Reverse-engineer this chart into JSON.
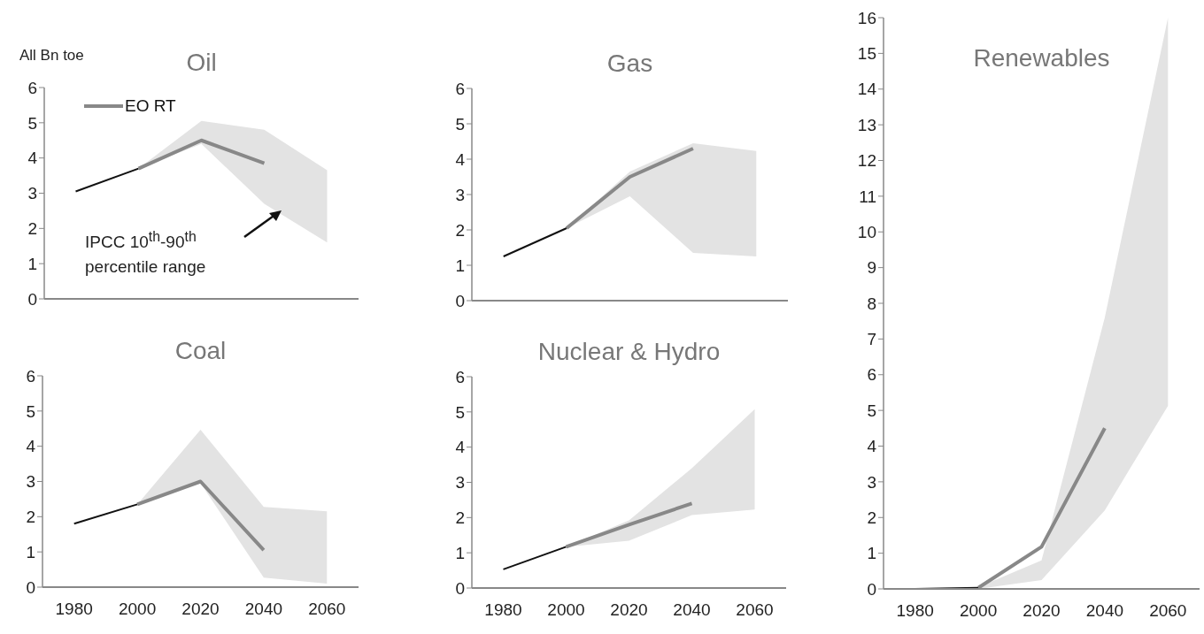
{
  "chart_data": [
    {
      "type": "line",
      "title": "Oil",
      "ylabel": "All Bn toe",
      "xlim": [
        1970,
        2070
      ],
      "xticks": [
        1980,
        2000,
        2020,
        2040,
        2060
      ],
      "ylim": [
        0,
        6
      ],
      "yticks": [
        0,
        1,
        2,
        3,
        4,
        5,
        6
      ],
      "tick_labels": "y",
      "legend": "top left",
      "series": [
        {
          "color": "#111111",
          "x": [
            1980,
            2000
          ],
          "values": [
            3.05,
            3.7
          ]
        },
        {
          "name": "EO RT",
          "color": "#888888",
          "x": [
            2000,
            2020,
            2040,
            2060
          ],
          "values": [
            3.7,
            4.5,
            3.85,
            null
          ],
          "lower": [
            3.7,
            4.4,
            2.7,
            1.6
          ],
          "upper": [
            3.7,
            5.05,
            4.8,
            3.65
          ]
        }
      ],
      "annotations": [
        "IPCC 10$^{th}$-90$^{th}$ percentile range"
      ]
    },
    {
      "type": "line",
      "title": "Gas",
      "xlim": [
        1970,
        2070
      ],
      "xticks": [
        1980,
        2000,
        2020,
        2040,
        2060
      ],
      "ylim": [
        0,
        6
      ],
      "yticks": [
        0,
        1,
        2,
        3,
        4,
        5,
        6
      ],
      "tick_labels": "y",
      "series": [
        {
          "color": "#111111",
          "x": [
            1980,
            2000
          ],
          "values": [
            1.25,
            2.05
          ]
        },
        {
          "color": "#888888",
          "x": [
            2000,
            2020,
            2040,
            2060
          ],
          "values": [
            2.05,
            3.5,
            4.3,
            null
          ],
          "lower": [
            2.05,
            2.95,
            1.35,
            1.25
          ],
          "upper": [
            2.05,
            3.65,
            4.45,
            4.23
          ]
        }
      ]
    },
    {
      "type": "line",
      "title": "Coal",
      "xlim": [
        1970,
        2070
      ],
      "xticks": [
        1980,
        2000,
        2020,
        2040,
        2060
      ],
      "ylim": [
        0,
        6
      ],
      "yticks": [
        0,
        1,
        2,
        3,
        4,
        5,
        6
      ],
      "series": [
        {
          "color": "#111111",
          "x": [
            1980,
            2000
          ],
          "values": [
            1.8,
            2.35
          ]
        },
        {
          "color": "#888888",
          "x": [
            2000,
            2020,
            2040,
            2060
          ],
          "values": [
            2.35,
            3.0,
            1.05,
            null
          ],
          "lower": [
            2.35,
            2.95,
            0.27,
            0.1
          ],
          "upper": [
            2.35,
            4.47,
            2.28,
            2.15
          ]
        }
      ]
    },
    {
      "type": "line",
      "title": "Nuclear & Hydro",
      "xlim": [
        1970,
        2070
      ],
      "xticks": [
        1980,
        2000,
        2020,
        2040,
        2060
      ],
      "ylim": [
        0,
        6
      ],
      "yticks": [
        0,
        1,
        2,
        3,
        4,
        5,
        6
      ],
      "series": [
        {
          "color": "#111111",
          "x": [
            1980,
            2000
          ],
          "values": [
            0.53,
            1.17
          ]
        },
        {
          "color": "#888888",
          "x": [
            2000,
            2020,
            2040,
            2060
          ],
          "values": [
            1.17,
            1.8,
            2.4,
            null
          ],
          "lower": [
            1.17,
            1.34,
            2.07,
            2.23
          ],
          "upper": [
            1.17,
            1.92,
            3.4,
            5.08
          ]
        }
      ]
    },
    {
      "type": "line",
      "title": "Renewables",
      "xlim": [
        1970,
        2070
      ],
      "xticks": [
        1980,
        2000,
        2020,
        2040,
        2060
      ],
      "ylim": [
        0,
        16
      ],
      "yticks": [
        0,
        1,
        2,
        3,
        4,
        5,
        6,
        7,
        8,
        9,
        10,
        11,
        12,
        13,
        14,
        15,
        16
      ],
      "series": [
        {
          "color": "#111111",
          "x": [
            1980,
            2000
          ],
          "values": [
            0,
            0.03
          ]
        },
        {
          "color": "#888888",
          "x": [
            2000,
            2020,
            2040,
            2060
          ],
          "values": [
            0.03,
            1.18,
            4.5,
            null
          ],
          "lower": [
            0,
            0.25,
            2.2,
            5.13
          ],
          "upper": [
            0.05,
            0.8,
            7.6,
            16
          ]
        }
      ]
    }
  ]
}
